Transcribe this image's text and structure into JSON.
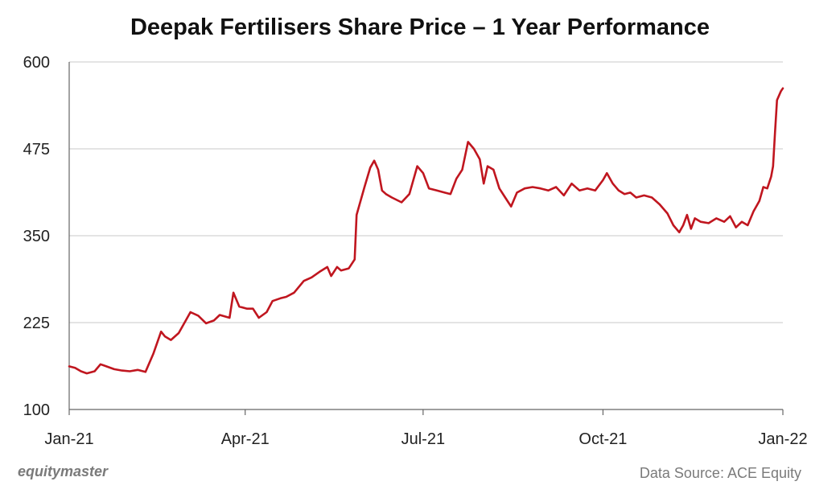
{
  "chart_data": {
    "type": "line",
    "title": "Deepak Fertilisers Share Price – 1 Year Performance",
    "xlabel": "",
    "ylabel": "",
    "x_range": [
      "2021-01-01",
      "2022-01-01"
    ],
    "ylim": [
      100,
      600
    ],
    "y_ticks": [
      100,
      225,
      350,
      475,
      600
    ],
    "x_ticks": [
      {
        "date": "2021-01-01",
        "label": "Jan-21"
      },
      {
        "date": "2021-04-01",
        "label": "Apr-21"
      },
      {
        "date": "2021-07-01",
        "label": "Jul-21"
      },
      {
        "date": "2021-10-01",
        "label": "Oct-21"
      },
      {
        "date": "2022-01-01",
        "label": "Jan-22"
      }
    ],
    "grid": "horizontal",
    "line_color": "#c0161f",
    "series": [
      {
        "points": [
          [
            "2021-01-01",
            162
          ],
          [
            "2021-01-04",
            160
          ],
          [
            "2021-01-07",
            155
          ],
          [
            "2021-01-10",
            152
          ],
          [
            "2021-01-14",
            155
          ],
          [
            "2021-01-17",
            165
          ],
          [
            "2021-01-20",
            162
          ],
          [
            "2021-01-24",
            158
          ],
          [
            "2021-01-28",
            156
          ],
          [
            "2021-02-01",
            155
          ],
          [
            "2021-02-05",
            157
          ],
          [
            "2021-02-09",
            154
          ],
          [
            "2021-02-13",
            180
          ],
          [
            "2021-02-17",
            212
          ],
          [
            "2021-02-19",
            205
          ],
          [
            "2021-02-22",
            200
          ],
          [
            "2021-02-26",
            210
          ],
          [
            "2021-03-02",
            230
          ],
          [
            "2021-03-04",
            240
          ],
          [
            "2021-03-08",
            235
          ],
          [
            "2021-03-12",
            224
          ],
          [
            "2021-03-16",
            228
          ],
          [
            "2021-03-19",
            236
          ],
          [
            "2021-03-24",
            232
          ],
          [
            "2021-03-26",
            268
          ],
          [
            "2021-03-29",
            248
          ],
          [
            "2021-04-02",
            245
          ],
          [
            "2021-04-05",
            245
          ],
          [
            "2021-04-08",
            232
          ],
          [
            "2021-04-12",
            240
          ],
          [
            "2021-04-15",
            256
          ],
          [
            "2021-04-19",
            260
          ],
          [
            "2021-04-22",
            262
          ],
          [
            "2021-04-26",
            268
          ],
          [
            "2021-05-01",
            285
          ],
          [
            "2021-05-05",
            290
          ],
          [
            "2021-05-09",
            298
          ],
          [
            "2021-05-13",
            305
          ],
          [
            "2021-05-15",
            292
          ],
          [
            "2021-05-18",
            305
          ],
          [
            "2021-05-20",
            300
          ],
          [
            "2021-05-24",
            303
          ],
          [
            "2021-05-27",
            316
          ],
          [
            "2021-05-28",
            380
          ],
          [
            "2021-06-01",
            420
          ],
          [
            "2021-06-04",
            448
          ],
          [
            "2021-06-06",
            458
          ],
          [
            "2021-06-08",
            445
          ],
          [
            "2021-06-10",
            415
          ],
          [
            "2021-06-12",
            410
          ],
          [
            "2021-06-15",
            405
          ],
          [
            "2021-06-20",
            398
          ],
          [
            "2021-06-24",
            410
          ],
          [
            "2021-06-28",
            450
          ],
          [
            "2021-07-01",
            440
          ],
          [
            "2021-07-04",
            418
          ],
          [
            "2021-07-08",
            415
          ],
          [
            "2021-07-12",
            412
          ],
          [
            "2021-07-15",
            410
          ],
          [
            "2021-07-18",
            432
          ],
          [
            "2021-07-21",
            445
          ],
          [
            "2021-07-24",
            485
          ],
          [
            "2021-07-27",
            475
          ],
          [
            "2021-07-30",
            460
          ],
          [
            "2021-08-01",
            425
          ],
          [
            "2021-08-03",
            450
          ],
          [
            "2021-08-06",
            445
          ],
          [
            "2021-08-09",
            418
          ],
          [
            "2021-08-12",
            405
          ],
          [
            "2021-08-15",
            392
          ],
          [
            "2021-08-18",
            412
          ],
          [
            "2021-08-22",
            418
          ],
          [
            "2021-08-26",
            420
          ],
          [
            "2021-08-30",
            418
          ],
          [
            "2021-09-03",
            415
          ],
          [
            "2021-09-07",
            420
          ],
          [
            "2021-09-11",
            408
          ],
          [
            "2021-09-15",
            425
          ],
          [
            "2021-09-19",
            415
          ],
          [
            "2021-09-23",
            418
          ],
          [
            "2021-09-27",
            415
          ],
          [
            "2021-10-01",
            430
          ],
          [
            "2021-10-03",
            440
          ],
          [
            "2021-10-06",
            425
          ],
          [
            "2021-10-09",
            415
          ],
          [
            "2021-10-12",
            410
          ],
          [
            "2021-10-15",
            412
          ],
          [
            "2021-10-18",
            405
          ],
          [
            "2021-10-22",
            408
          ],
          [
            "2021-10-26",
            405
          ],
          [
            "2021-10-30",
            395
          ],
          [
            "2021-11-03",
            382
          ],
          [
            "2021-11-06",
            365
          ],
          [
            "2021-11-09",
            355
          ],
          [
            "2021-11-11",
            365
          ],
          [
            "2021-11-13",
            380
          ],
          [
            "2021-11-15",
            360
          ],
          [
            "2021-11-17",
            375
          ],
          [
            "2021-11-20",
            370
          ],
          [
            "2021-11-24",
            368
          ],
          [
            "2021-11-28",
            375
          ],
          [
            "2021-12-02",
            370
          ],
          [
            "2021-12-05",
            378
          ],
          [
            "2021-12-08",
            362
          ],
          [
            "2021-12-11",
            370
          ],
          [
            "2021-12-14",
            365
          ],
          [
            "2021-12-17",
            385
          ],
          [
            "2021-12-20",
            400
          ],
          [
            "2021-12-22",
            420
          ],
          [
            "2021-12-24",
            418
          ],
          [
            "2021-12-26",
            435
          ],
          [
            "2021-12-27",
            450
          ],
          [
            "2021-12-28",
            500
          ],
          [
            "2021-12-29",
            545
          ],
          [
            "2021-12-31",
            558
          ],
          [
            "2022-01-01",
            562
          ]
        ]
      }
    ]
  },
  "footer": {
    "brand": "equitymaster",
    "source": "Data Source: ACE Equity"
  }
}
